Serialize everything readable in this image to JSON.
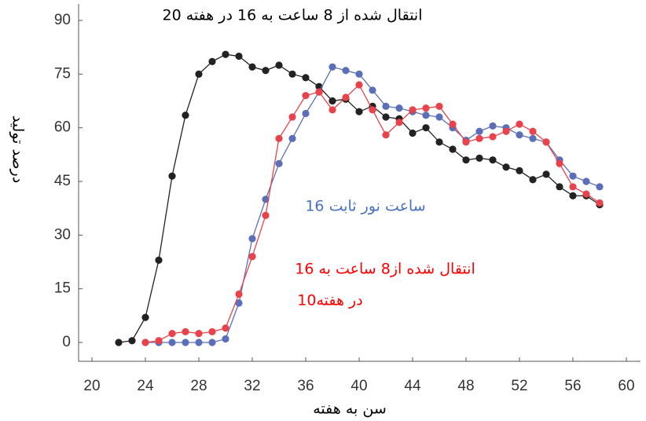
{
  "chart_data": {
    "type": "line",
    "x_label": "سن به هفته",
    "y_label": "درصد تولید",
    "xlim": [
      20,
      60
    ],
    "xticks": [
      20,
      24,
      28,
      32,
      36,
      40,
      44,
      48,
      52,
      56,
      60
    ],
    "ylim": [
      0,
      90
    ],
    "yticks": [
      0,
      15,
      30,
      45,
      60,
      75,
      90
    ],
    "series": [
      {
        "name": "انتقال شده از 8 ساعت به 16 در هفته 20",
        "color": "#222222",
        "label_color": "#000000",
        "x": [
          22,
          23,
          24,
          25,
          26,
          27,
          28,
          29,
          30,
          31,
          32,
          33,
          34,
          35,
          36,
          37,
          38,
          39,
          40,
          41,
          42,
          43,
          44,
          45,
          46,
          47,
          48,
          49,
          50,
          51,
          52,
          53,
          54,
          55,
          56,
          57,
          58
        ],
        "values": [
          0,
          0.5,
          7,
          23,
          46.5,
          63.5,
          75,
          78.5,
          80.5,
          80,
          77,
          76,
          77.5,
          75,
          74,
          71.5,
          67.5,
          68,
          64.5,
          66,
          63,
          62.5,
          58.5,
          60,
          56,
          54,
          51,
          51.5,
          51,
          49,
          48,
          45.5,
          47,
          43.5,
          41,
          41,
          38.5
        ]
      },
      {
        "name": "16 ساعت نور ثابت",
        "color": "#5b6fb8",
        "label_color": "#4a72c0",
        "x": [
          24,
          25,
          26,
          27,
          28,
          29,
          30,
          31,
          32,
          33,
          34,
          35,
          36,
          37,
          38,
          39,
          40,
          41,
          42,
          43,
          44,
          45,
          46,
          47,
          48,
          49,
          50,
          51,
          52,
          53,
          54,
          55,
          56,
          57,
          58
        ],
        "values": [
          0,
          0,
          0,
          0,
          0,
          0,
          1,
          11,
          29,
          40,
          50,
          57,
          64,
          70,
          77,
          76,
          75,
          70.5,
          66,
          65.5,
          64.5,
          63.5,
          63,
          60,
          56.5,
          59,
          60.5,
          60,
          58,
          57,
          56,
          51,
          46.5,
          45,
          43.5
        ]
      },
      {
        "name": [
          "انتقال شده از8 ساعت به 16",
          "در هفته10"
        ],
        "color": "#e8424a",
        "label_color": "#ff0000",
        "x": [
          24,
          25,
          26,
          27,
          28,
          29,
          30,
          31,
          32,
          33,
          34,
          35,
          36,
          37,
          38,
          39,
          40,
          41,
          42,
          43,
          44,
          45,
          46,
          47,
          48,
          49,
          50,
          51,
          52,
          53,
          54,
          55,
          56,
          57,
          58
        ],
        "values": [
          0,
          0.5,
          2.5,
          3,
          2.5,
          3,
          4,
          13.5,
          24,
          35.5,
          57,
          63,
          69,
          70,
          65,
          68.5,
          72,
          65,
          58,
          61.5,
          65,
          65.5,
          66,
          61,
          56,
          57,
          57.5,
          59,
          61,
          59,
          56,
          50,
          43.5,
          41.5,
          39
        ]
      }
    ]
  }
}
